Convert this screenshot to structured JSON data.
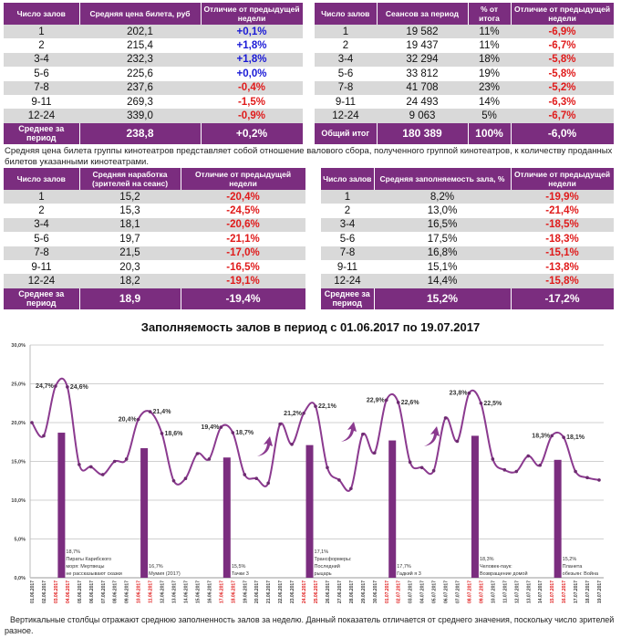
{
  "colors": {
    "header": "#7b2d7f",
    "positive": "#1a1ad6",
    "negative": "#e01b1b",
    "line": "#8b3a8f",
    "bar": "#7b2d7f",
    "weekend": "#e01b1b"
  },
  "tables": [
    {
      "headers": [
        "Число залов",
        "Средняя цена билета, руб",
        "Отличие от предыдущей недели"
      ],
      "rows": [
        [
          "1",
          "202,1",
          "+0,1%"
        ],
        [
          "2",
          "215,4",
          "+1,8%"
        ],
        [
          "3-4",
          "232,3",
          "+1,8%"
        ],
        [
          "5-6",
          "225,6",
          "+0,0%"
        ],
        [
          "7-8",
          "237,6",
          "-0,4%"
        ],
        [
          "9-11",
          "269,3",
          "-1,5%"
        ],
        [
          "12-24",
          "339,0",
          "-0,9%"
        ]
      ],
      "footer": [
        "Среднее за период",
        "238,8",
        "+0,2%"
      ]
    },
    {
      "headers": [
        "Число залов",
        "Сеансов за период",
        "% от итога",
        "Отличие от предыдущей недели"
      ],
      "rows": [
        [
          "1",
          "19 582",
          "11%",
          "-6,9%"
        ],
        [
          "2",
          "19 437",
          "11%",
          "-6,7%"
        ],
        [
          "3-4",
          "32 294",
          "18%",
          "-5,8%"
        ],
        [
          "5-6",
          "33 812",
          "19%",
          "-5,8%"
        ],
        [
          "7-8",
          "41 708",
          "23%",
          "-5,2%"
        ],
        [
          "9-11",
          "24 493",
          "14%",
          "-6,3%"
        ],
        [
          "12-24",
          "9 063",
          "5%",
          "-6,7%"
        ]
      ],
      "footer": [
        "Общий итог",
        "180 389",
        "100%",
        "-6,0%"
      ]
    },
    {
      "headers": [
        "Число залов",
        "Средняя наработка (зрителей на сеанс)",
        "Отличие от предыдущей недели"
      ],
      "rows": [
        [
          "1",
          "15,2",
          "-20,4%"
        ],
        [
          "2",
          "15,3",
          "-24,5%"
        ],
        [
          "3-4",
          "18,1",
          "-20,6%"
        ],
        [
          "5-6",
          "19,7",
          "-21,1%"
        ],
        [
          "7-8",
          "21,5",
          "-17,0%"
        ],
        [
          "9-11",
          "20,3",
          "-16,5%"
        ],
        [
          "12-24",
          "18,2",
          "-19,1%"
        ]
      ],
      "footer": [
        "Среднее за период",
        "18,9",
        "-19,4%"
      ]
    },
    {
      "headers": [
        "Число залов",
        "Средняя заполняемость зала, %",
        "Отличие от предыдущей недели"
      ],
      "rows": [
        [
          "1",
          "8,2%",
          "-19,9%"
        ],
        [
          "2",
          "13,0%",
          "-21,4%"
        ],
        [
          "3-4",
          "16,5%",
          "-18,5%"
        ],
        [
          "5-6",
          "17,5%",
          "-18,3%"
        ],
        [
          "7-8",
          "16,8%",
          "-15,1%"
        ],
        [
          "9-11",
          "15,1%",
          "-13,8%"
        ],
        [
          "12-24",
          "14,4%",
          "-15,8%"
        ]
      ],
      "footer": [
        "Среднее за период",
        "15,2%",
        "-17,2%"
      ]
    }
  ],
  "caption": "Средняя цена билета группы кинотеатров представляет собой отношение валового сбора, полученного группой кинотеатров, к количеству проданных билетов указанными кинотеатрами.",
  "footnote": "Вертикальные столбцы отражают среднюю заполненность залов за неделю. Данный показатель отличается от среднего значения, поскольку число зрителей разное.",
  "chart_data": {
    "type": "line+bar",
    "title": "Заполняемость залов в период с 01.06.2017 по 19.07.2017",
    "ylim": [
      0,
      30
    ],
    "yticks": [
      "0,0%",
      "5,0%",
      "10,0%",
      "15,0%",
      "20,0%",
      "25,0%",
      "30,0%"
    ],
    "grid": true,
    "x": [
      "01.06.2017",
      "02.06.2017",
      "03.06.2017",
      "04.06.2017",
      "05.06.2017",
      "06.06.2017",
      "07.06.2017",
      "08.06.2017",
      "09.06.2017",
      "10.06.2017",
      "11.06.2017",
      "12.06.2017",
      "13.06.2017",
      "14.06.2017",
      "15.06.2017",
      "16.06.2017",
      "17.06.2017",
      "18.06.2017",
      "19.06.2017",
      "20.06.2017",
      "21.06.2017",
      "22.06.2017",
      "23.06.2017",
      "24.06.2017",
      "25.06.2017",
      "26.06.2017",
      "27.06.2017",
      "28.06.2017",
      "29.06.2017",
      "30.06.2017",
      "01.07.2017",
      "02.07.2017",
      "03.07.2017",
      "04.07.2017",
      "05.07.2017",
      "06.07.2017",
      "07.07.2017",
      "08.07.2017",
      "09.07.2017",
      "10.07.2017",
      "11.07.2017",
      "12.07.2017",
      "13.07.2017",
      "14.07.2017",
      "15.07.2017",
      "16.07.2017",
      "17.07.2017",
      "18.07.2017",
      "19.07.2017"
    ],
    "weekend_dates": [
      "03.06.2017",
      "04.06.2017",
      "10.06.2017",
      "11.06.2017",
      "17.06.2017",
      "18.06.2017",
      "24.06.2017",
      "25.06.2017",
      "01.07.2017",
      "02.07.2017",
      "08.07.2017",
      "09.07.2017",
      "15.07.2017",
      "16.07.2017"
    ],
    "daily": [
      20.0,
      18.3,
      24.7,
      24.6,
      14.6,
      14.3,
      13.3,
      15.0,
      15.3,
      20.4,
      21.4,
      18.6,
      12.5,
      12.8,
      16.0,
      15.3,
      19.4,
      18.7,
      13.3,
      12.8,
      12.2,
      19.8,
      17.2,
      21.2,
      22.1,
      14.2,
      12.6,
      11.5,
      18.5,
      16.1,
      22.9,
      22.6,
      14.9,
      14.2,
      13.8,
      20.6,
      17.6,
      23.8,
      22.5,
      15.3,
      13.9,
      13.7,
      15.7,
      14.5,
      18.3,
      18.1,
      13.7,
      12.9,
      12.6
    ],
    "point_labels": [
      {
        "date": "03.06.2017",
        "text": "24,7%",
        "side": "left"
      },
      {
        "date": "04.06.2017",
        "text": "24,6%",
        "side": "right"
      },
      {
        "date": "10.06.2017",
        "text": "20,4%",
        "side": "left"
      },
      {
        "date": "11.06.2017",
        "text": "21,4%",
        "side": "right"
      },
      {
        "date": "12.06.2017",
        "text": "18,6%",
        "side": "right"
      },
      {
        "date": "17.06.2017",
        "text": "19,4%",
        "side": "left"
      },
      {
        "date": "18.06.2017",
        "text": "18,7%",
        "side": "right"
      },
      {
        "date": "24.06.2017",
        "text": "21,2%",
        "side": "left"
      },
      {
        "date": "25.06.2017",
        "text": "22,1%",
        "side": "right"
      },
      {
        "date": "01.07.2017",
        "text": "22,9%",
        "side": "left"
      },
      {
        "date": "02.07.2017",
        "text": "22,6%",
        "side": "right"
      },
      {
        "date": "08.07.2017",
        "text": "23,8%",
        "side": "left"
      },
      {
        "date": "09.07.2017",
        "text": "22,5%",
        "side": "right"
      },
      {
        "date": "15.07.2017",
        "text": "18,3%",
        "side": "left"
      },
      {
        "date": "16.07.2017",
        "text": "18,1%",
        "side": "right"
      }
    ],
    "weekly_bars": [
      {
        "weekend": [
          "03.06.2017",
          "04.06.2017"
        ],
        "value": 18.7,
        "label": [
          "18,7%",
          "Пираты Карибского",
          "моря: Мертвецы",
          "не рассказывают сказки"
        ]
      },
      {
        "weekend": [
          "10.06.2017",
          "11.06.2017"
        ],
        "value": 16.7,
        "label": [
          "16,7%",
          "Мумия (2017)"
        ]
      },
      {
        "weekend": [
          "17.06.2017",
          "18.06.2017"
        ],
        "value": 15.5,
        "label": [
          "15,5%",
          "Тачки 3"
        ]
      },
      {
        "weekend": [
          "24.06.2017",
          "25.06.2017"
        ],
        "value": 17.1,
        "label": [
          "17,1%",
          "Трансформеры:",
          "Последний",
          "рыцарь"
        ]
      },
      {
        "weekend": [
          "01.07.2017",
          "02.07.2017"
        ],
        "value": 17.7,
        "label": [
          "17,7%",
          "Гадкий я 3"
        ]
      },
      {
        "weekend": [
          "08.07.2017",
          "09.07.2017"
        ],
        "value": 18.3,
        "label": [
          "18,3%",
          "Человек-паук:",
          "Возвращение домой"
        ]
      },
      {
        "weekend": [
          "15.07.2017",
          "16.07.2017"
        ],
        "value": 15.2,
        "label": [
          "15,2%",
          "Планета",
          "обезьян: Война"
        ]
      }
    ],
    "arrows": [
      "arrow-up-icon",
      "arrow-up-icon",
      "arrow-up-icon"
    ]
  }
}
